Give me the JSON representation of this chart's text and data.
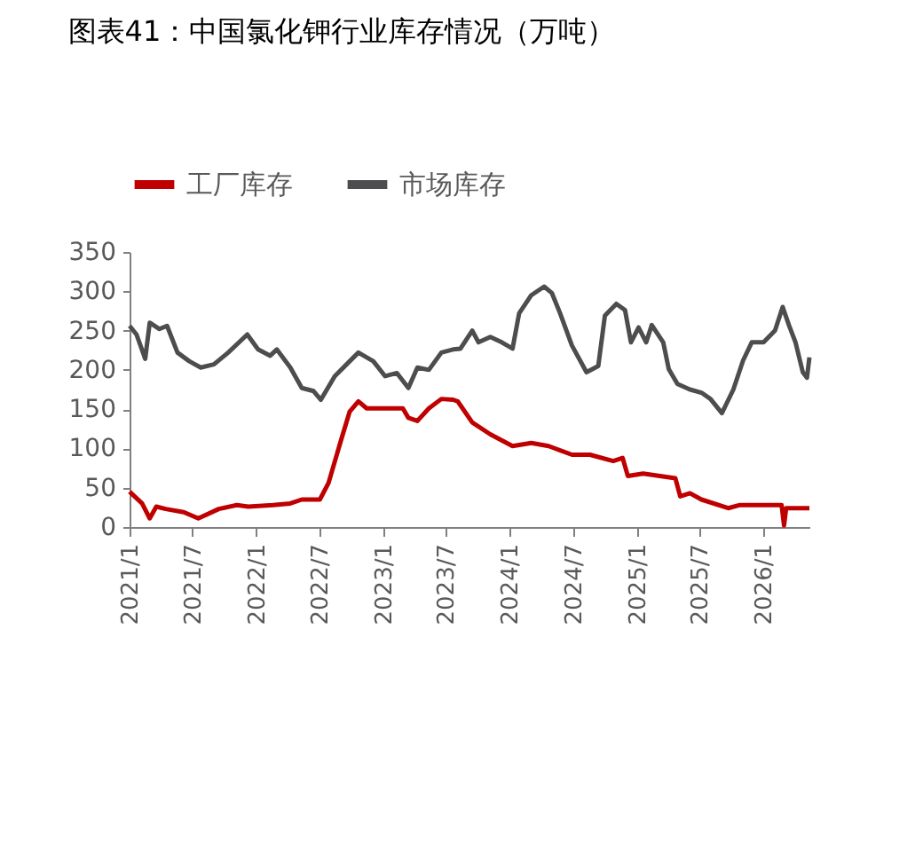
{
  "chart_data": {
    "type": "line",
    "title": "图表41：中国氯化钾行业库存情况（万吨）",
    "ylim": [
      0,
      350
    ],
    "yticks": [
      0,
      50,
      100,
      150,
      200,
      250,
      300,
      350
    ],
    "xlim": [
      "2021-01-01",
      "2026-05-13"
    ],
    "xticks": [
      {
        "value": "2021-01-01",
        "label": "2021/1"
      },
      {
        "value": "2021-07-01",
        "label": "2021/7"
      },
      {
        "value": "2022-01-01",
        "label": "2022/1"
      },
      {
        "value": "2022-07-01",
        "label": "2022/7"
      },
      {
        "value": "2023-01-01",
        "label": "2023/1"
      },
      {
        "value": "2023-07-01",
        "label": "2023/7"
      },
      {
        "value": "2024-01-01",
        "label": "2024/1"
      },
      {
        "value": "2024-07-01",
        "label": "2024/7"
      },
      {
        "value": "2025-01-01",
        "label": "2025/1"
      },
      {
        "value": "2025-07-01",
        "label": "2025/7"
      },
      {
        "value": "2026-01-01",
        "label": "2026/1"
      }
    ],
    "grid": false,
    "legend": "top",
    "marker": "none",
    "line_style": "solid",
    "series": [
      {
        "name": "工厂库存",
        "color": "#c00000",
        "x": [
          "2021-01-01",
          "2021-02-06",
          "2021-02-28",
          "2021-03-19",
          "2021-04-15",
          "2021-06-06",
          "2021-07-18",
          "2021-09-15",
          "2021-11-06",
          "2021-12-09",
          "2022-02-18",
          "2022-04-09",
          "2022-05-12",
          "2022-07-03",
          "2022-07-28",
          "2022-09-01",
          "2022-09-27",
          "2022-10-22",
          "2022-11-15",
          "2023-01-07",
          "2023-02-27",
          "2023-03-15",
          "2023-04-10",
          "2023-05-13",
          "2023-06-18",
          "2023-07-22",
          "2023-08-04",
          "2023-09-15",
          "2023-11-06",
          "2024-01-09",
          "2024-03-03",
          "2024-04-22",
          "2024-06-28",
          "2024-08-19",
          "2024-10-25",
          "2024-11-21",
          "2024-12-06",
          "2025-01-19",
          "2025-04-22",
          "2025-05-06",
          "2025-06-03",
          "2025-07-06",
          "2025-09-21",
          "2025-10-25",
          "2026-02-22",
          "2026-03-01",
          "2026-03-07",
          "2026-05-13"
        ],
        "values": [
          45,
          30,
          11,
          26,
          23,
          19,
          11,
          23,
          28,
          26,
          28,
          30,
          35,
          35,
          56,
          109,
          147,
          160,
          151,
          151,
          151,
          139,
          135,
          151,
          163,
          162,
          160,
          133,
          118,
          103,
          107,
          103,
          92,
          92,
          84,
          88,
          65,
          68,
          62,
          39,
          43,
          35,
          24,
          28,
          28,
          2,
          24,
          24
        ]
      },
      {
        "name": "市场库存",
        "color": "#4d4d4f",
        "x": [
          "2021-01-01",
          "2021-01-21",
          "2021-02-15",
          "2021-02-28",
          "2021-03-28",
          "2021-04-19",
          "2021-05-19",
          "2021-06-22",
          "2021-07-25",
          "2021-09-01",
          "2021-10-12",
          "2021-12-06",
          "2022-01-06",
          "2022-02-10",
          "2022-03-01",
          "2022-04-09",
          "2022-05-12",
          "2022-06-15",
          "2022-07-06",
          "2022-08-15",
          "2022-09-27",
          "2022-10-22",
          "2022-12-04",
          "2023-01-07",
          "2023-02-10",
          "2023-03-15",
          "2023-04-10",
          "2023-05-13",
          "2023-06-18",
          "2023-07-22",
          "2023-08-12",
          "2023-09-15",
          "2023-10-03",
          "2023-11-06",
          "2023-12-09",
          "2024-01-09",
          "2024-01-28",
          "2024-03-03",
          "2024-04-09",
          "2024-05-01",
          "2024-05-25",
          "2024-06-28",
          "2024-08-09",
          "2024-09-12",
          "2024-10-01",
          "2024-11-03",
          "2024-11-28",
          "2024-12-15",
          "2025-01-06",
          "2025-01-28",
          "2025-02-13",
          "2025-03-18",
          "2025-04-03",
          "2025-04-28",
          "2025-06-03",
          "2025-07-06",
          "2025-08-01",
          "2025-09-03",
          "2025-10-06",
          "2025-11-03",
          "2025-11-28",
          "2026-01-01",
          "2026-02-03",
          "2026-02-25",
          "2026-03-15",
          "2026-04-03",
          "2026-04-24",
          "2026-05-06",
          "2026-05-13"
        ],
        "values": [
          256,
          245,
          214,
          260,
          252,
          256,
          222,
          211,
          203,
          207,
          222,
          245,
          226,
          218,
          226,
          203,
          177,
          173,
          162,
          192,
          211,
          222,
          211,
          192,
          196,
          177,
          203,
          200,
          222,
          226,
          227,
          250,
          235,
          242,
          235,
          227,
          272,
          295,
          306,
          298,
          272,
          231,
          197,
          205,
          269,
          284,
          276,
          235,
          254,
          235,
          257,
          235,
          201,
          182,
          175,
          171,
          163,
          145,
          175,
          212,
          235,
          235,
          250,
          280,
          257,
          235,
          197,
          190,
          216
        ]
      }
    ]
  }
}
